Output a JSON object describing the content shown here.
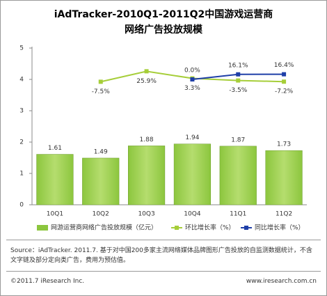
{
  "chart_data": {
    "type": "bar",
    "title": [
      "iAdTracker-2010Q1-2011Q2中国游戏运营商",
      "网络广告投放规模"
    ],
    "categories": [
      "10Q1",
      "10Q2",
      "10Q3",
      "10Q4",
      "11Q1",
      "11Q2"
    ],
    "series": [
      {
        "name": "网游运营商网络广告投放规模（亿元）",
        "type": "bar",
        "color": "#8cc63e",
        "values": [
          1.61,
          1.49,
          1.88,
          1.94,
          1.87,
          1.73
        ]
      },
      {
        "name": "环比增长率（%）",
        "type": "line",
        "axis": "y2",
        "color": "#a6ce39",
        "values": [
          null,
          -7.5,
          25.9,
          3.3,
          -3.5,
          -7.2
        ],
        "value_labels": [
          null,
          "-7.5%",
          "25.9%",
          "3.3%",
          "-3.5%",
          "-7.2%"
        ]
      },
      {
        "name": "同比增长率（%）",
        "type": "line",
        "axis": "y2",
        "color": "#1f3fa8",
        "values": [
          null,
          null,
          null,
          0.0,
          16.1,
          16.4
        ],
        "value_labels": [
          null,
          null,
          null,
          "0.0%",
          "16.1%",
          "16.4%"
        ]
      }
    ],
    "ylim": [
      0,
      5
    ],
    "yticks": [
      0,
      1,
      2,
      3,
      4,
      5
    ],
    "y2lim": [
      -400,
      100
    ],
    "grid": false
  },
  "source": "Source：iAdTracker. 2011.7. 基于对中国200多家主流网络媒体品牌图形广告投放的自监测数据统计，不含文字链及部分定向类广告，费用为预估值。",
  "footer": {
    "left": "©2011.7 iResearch Inc.",
    "right": "www.iresearch.com.cn"
  }
}
